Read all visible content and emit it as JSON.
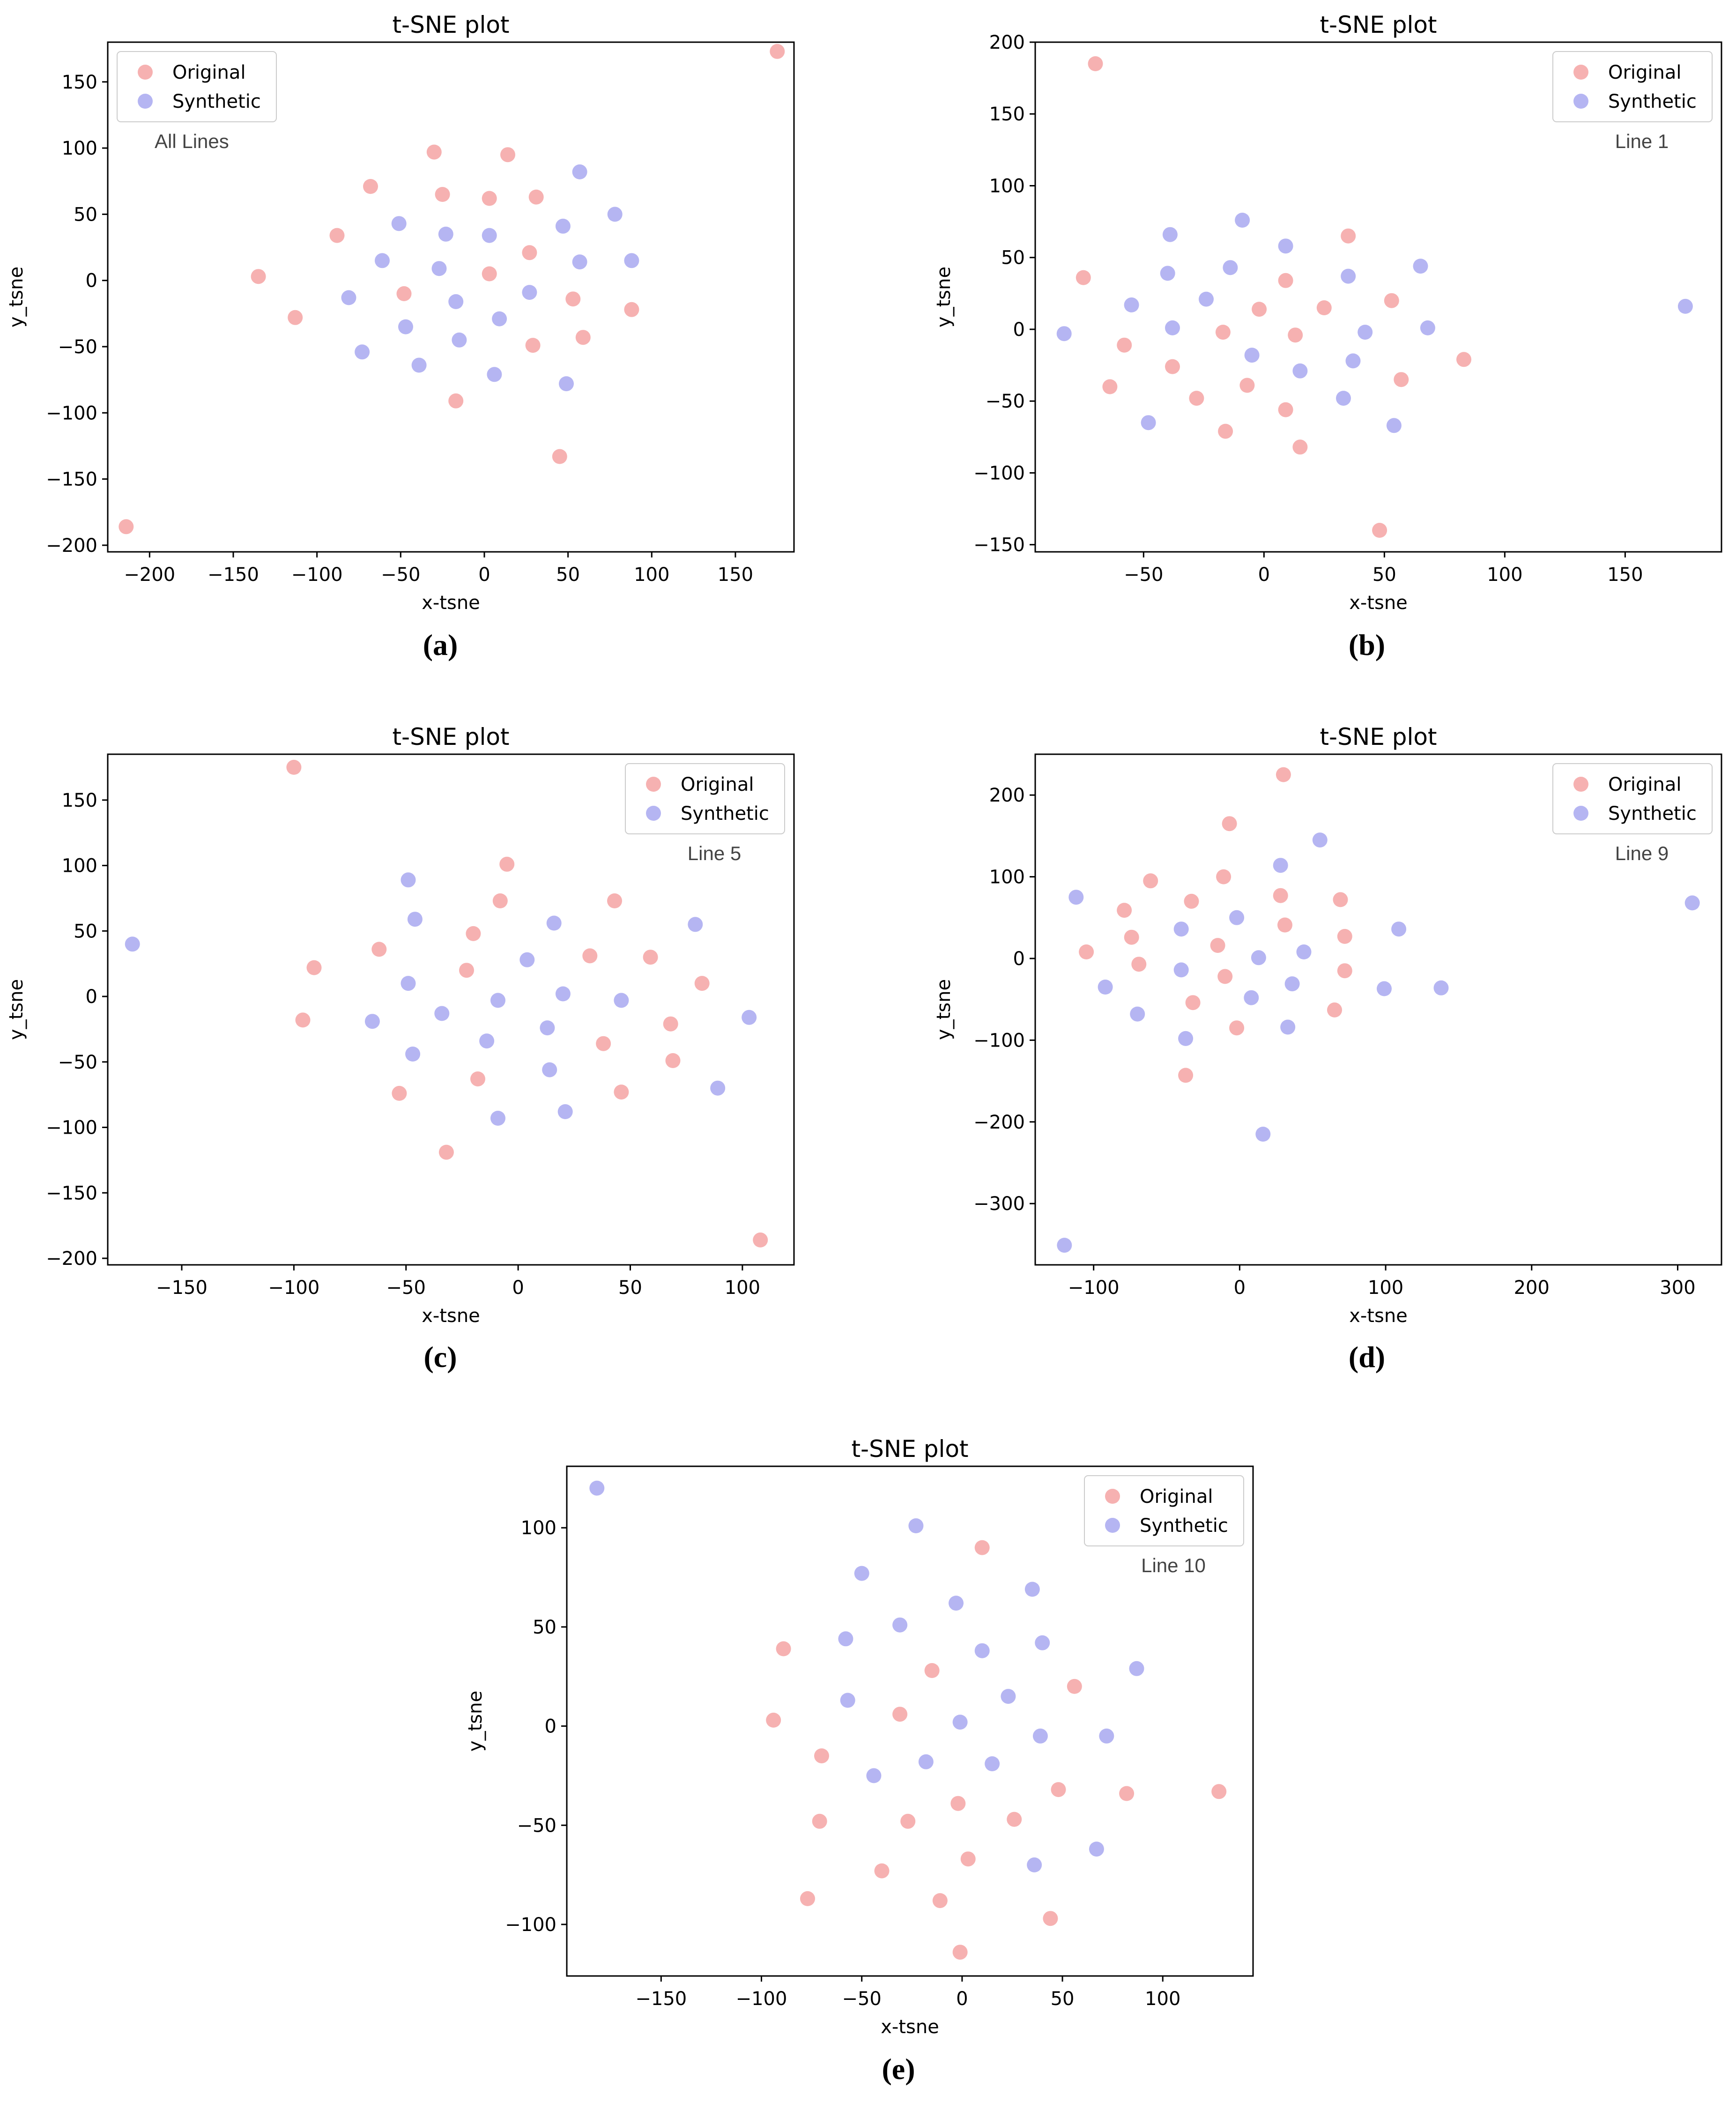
{
  "figure": {
    "colors": {
      "original": "#f4a3a3",
      "synthetic": "#a8a8f0"
    },
    "captions": [
      "(a)",
      "(b)",
      "(c)",
      "(d)",
      "(e)"
    ]
  },
  "chart_data": [
    {
      "type": "scatter",
      "id": "a",
      "title": "t-SNE plot",
      "xlabel": "x-tsne",
      "ylabel": "y_tsne",
      "annotation": "All Lines",
      "legend": {
        "placement": "top-left",
        "entries": [
          "Original",
          "Synthetic"
        ]
      },
      "xlim": [
        -225,
        185
      ],
      "ylim": [
        -205,
        180
      ],
      "xticks": [
        -200,
        -150,
        -100,
        -50,
        0,
        50,
        100,
        150
      ],
      "yticks": [
        -200,
        -150,
        -100,
        -50,
        0,
        50,
        100,
        150
      ],
      "series": [
        {
          "name": "Original",
          "points": [
            [
              175,
              173
            ],
            [
              -30,
              97
            ],
            [
              14,
              95
            ],
            [
              -68,
              71
            ],
            [
              -25,
              65
            ],
            [
              3,
              62
            ],
            [
              31,
              63
            ],
            [
              -88,
              34
            ],
            [
              27,
              21
            ],
            [
              -135,
              3
            ],
            [
              3,
              5
            ],
            [
              -48,
              -10
            ],
            [
              53,
              -14
            ],
            [
              88,
              -22
            ],
            [
              -113,
              -28
            ],
            [
              29,
              -49
            ],
            [
              59,
              -43
            ],
            [
              -17,
              -91
            ],
            [
              45,
              -133
            ],
            [
              -214,
              -186
            ]
          ]
        },
        {
          "name": "Synthetic",
          "points": [
            [
              57,
              82
            ],
            [
              78,
              50
            ],
            [
              -51,
              43
            ],
            [
              -23,
              35
            ],
            [
              3,
              34
            ],
            [
              47,
              41
            ],
            [
              -61,
              15
            ],
            [
              -27,
              9
            ],
            [
              57,
              14
            ],
            [
              88,
              15
            ],
            [
              -81,
              -13
            ],
            [
              -17,
              -16
            ],
            [
              27,
              -9
            ],
            [
              -47,
              -35
            ],
            [
              9,
              -29
            ],
            [
              -15,
              -45
            ],
            [
              -73,
              -54
            ],
            [
              -39,
              -64
            ],
            [
              6,
              -71
            ],
            [
              49,
              -78
            ]
          ]
        }
      ]
    },
    {
      "type": "scatter",
      "id": "b",
      "title": "t-SNE plot",
      "xlabel": "x-tsne",
      "ylabel": "y_tsne",
      "annotation": "Line 1",
      "legend": {
        "placement": "top-right",
        "entries": [
          "Original",
          "Synthetic"
        ]
      },
      "xlim": [
        -95,
        190
      ],
      "ylim": [
        -155,
        200
      ],
      "xticks": [
        -50,
        0,
        50,
        100,
        150
      ],
      "yticks": [
        -150,
        -100,
        -50,
        0,
        50,
        100,
        150,
        200
      ],
      "series": [
        {
          "name": "Original",
          "points": [
            [
              -70,
              185
            ],
            [
              35,
              65
            ],
            [
              -75,
              36
            ],
            [
              9,
              34
            ],
            [
              53,
              20
            ],
            [
              -2,
              14
            ],
            [
              25,
              15
            ],
            [
              -17,
              -2
            ],
            [
              13,
              -4
            ],
            [
              -58,
              -11
            ],
            [
              -38,
              -26
            ],
            [
              57,
              -35
            ],
            [
              83,
              -21
            ],
            [
              -64,
              -40
            ],
            [
              -28,
              -48
            ],
            [
              -7,
              -39
            ],
            [
              9,
              -56
            ],
            [
              -16,
              -71
            ],
            [
              15,
              -82
            ],
            [
              48,
              -140
            ]
          ]
        },
        {
          "name": "Synthetic",
          "points": [
            [
              -9,
              76
            ],
            [
              -39,
              66
            ],
            [
              9,
              58
            ],
            [
              65,
              44
            ],
            [
              -14,
              43
            ],
            [
              -40,
              39
            ],
            [
              35,
              37
            ],
            [
              -55,
              17
            ],
            [
              -24,
              21
            ],
            [
              175,
              16
            ],
            [
              -83,
              -3
            ],
            [
              -38,
              1
            ],
            [
              42,
              -2
            ],
            [
              68,
              1
            ],
            [
              -5,
              -18
            ],
            [
              15,
              -29
            ],
            [
              37,
              -22
            ],
            [
              -48,
              -65
            ],
            [
              33,
              -48
            ],
            [
              54,
              -67
            ]
          ]
        }
      ]
    },
    {
      "type": "scatter",
      "id": "c",
      "title": "t-SNE plot",
      "xlabel": "x-tsne",
      "ylabel": "y_tsne",
      "annotation": "Line 5",
      "legend": {
        "placement": "top-right",
        "entries": [
          "Original",
          "Synthetic"
        ]
      },
      "xlim": [
        -183,
        123
      ],
      "ylim": [
        -205,
        185
      ],
      "xticks": [
        -150,
        -100,
        -50,
        0,
        50,
        100
      ],
      "yticks": [
        -200,
        -150,
        -100,
        -50,
        0,
        50,
        100,
        150
      ],
      "series": [
        {
          "name": "Original",
          "points": [
            [
              -100,
              175
            ],
            [
              -5,
              101
            ],
            [
              43,
              73
            ],
            [
              -8,
              73
            ],
            [
              -20,
              48
            ],
            [
              -62,
              36
            ],
            [
              32,
              31
            ],
            [
              59,
              30
            ],
            [
              -91,
              22
            ],
            [
              -23,
              20
            ],
            [
              82,
              10
            ],
            [
              -96,
              -18
            ],
            [
              68,
              -21
            ],
            [
              38,
              -36
            ],
            [
              69,
              -49
            ],
            [
              -18,
              -63
            ],
            [
              -53,
              -74
            ],
            [
              46,
              -73
            ],
            [
              -32,
              -119
            ],
            [
              108,
              -186
            ]
          ]
        },
        {
          "name": "Synthetic",
          "points": [
            [
              -49,
              89
            ],
            [
              -46,
              59
            ],
            [
              16,
              56
            ],
            [
              79,
              55
            ],
            [
              -172,
              40
            ],
            [
              4,
              28
            ],
            [
              -49,
              10
            ],
            [
              -9,
              -3
            ],
            [
              20,
              2
            ],
            [
              46,
              -3
            ],
            [
              -65,
              -19
            ],
            [
              -34,
              -13
            ],
            [
              13,
              -24
            ],
            [
              103,
              -16
            ],
            [
              -14,
              -34
            ],
            [
              -47,
              -44
            ],
            [
              14,
              -56
            ],
            [
              89,
              -70
            ],
            [
              -9,
              -93
            ],
            [
              21,
              -88
            ]
          ]
        }
      ]
    },
    {
      "type": "scatter",
      "id": "d",
      "title": "t-SNE plot",
      "xlabel": "x-tsne",
      "ylabel": "y_tsne",
      "annotation": "Line 9",
      "legend": {
        "placement": "top-right",
        "entries": [
          "Original",
          "Synthetic"
        ]
      },
      "xlim": [
        -140,
        330
      ],
      "ylim": [
        -375,
        250
      ],
      "xticks": [
        -100,
        0,
        100,
        200,
        300
      ],
      "yticks": [
        -300,
        -200,
        -100,
        0,
        100,
        200
      ],
      "series": [
        {
          "name": "Original",
          "points": [
            [
              30,
              225
            ],
            [
              -7,
              165
            ],
            [
              -11,
              100
            ],
            [
              -61,
              95
            ],
            [
              28,
              77
            ],
            [
              -33,
              70
            ],
            [
              69,
              72
            ],
            [
              -79,
              59
            ],
            [
              31,
              41
            ],
            [
              -74,
              26
            ],
            [
              72,
              27
            ],
            [
              -105,
              8
            ],
            [
              -15,
              16
            ],
            [
              -69,
              -7
            ],
            [
              -10,
              -22
            ],
            [
              72,
              -15
            ],
            [
              -32,
              -54
            ],
            [
              -2,
              -85
            ],
            [
              65,
              -63
            ],
            [
              -37,
              -143
            ]
          ]
        },
        {
          "name": "Synthetic",
          "points": [
            [
              55,
              145
            ],
            [
              -112,
              75
            ],
            [
              28,
              114
            ],
            [
              -2,
              50
            ],
            [
              -40,
              36
            ],
            [
              109,
              36
            ],
            [
              44,
              8
            ],
            [
              13,
              1
            ],
            [
              -40,
              -14
            ],
            [
              -92,
              -35
            ],
            [
              36,
              -31
            ],
            [
              99,
              -37
            ],
            [
              138,
              -36
            ],
            [
              8,
              -48
            ],
            [
              -70,
              -68
            ],
            [
              -37,
              -98
            ],
            [
              33,
              -84
            ],
            [
              16,
              -215
            ],
            [
              -120,
              -351
            ],
            [
              310,
              68
            ]
          ]
        }
      ]
    },
    {
      "type": "scatter",
      "id": "e",
      "title": "t-SNE plot",
      "xlabel": "x-tsne",
      "ylabel": "y_tsne",
      "annotation": "Line 10",
      "legend": {
        "placement": "top-right",
        "entries": [
          "Original",
          "Synthetic"
        ]
      },
      "xlim": [
        -197,
        145
      ],
      "ylim": [
        -126,
        131
      ],
      "xticks": [
        -150,
        -100,
        -50,
        0,
        50,
        100
      ],
      "yticks": [
        -100,
        -50,
        0,
        50,
        100
      ],
      "series": [
        {
          "name": "Original",
          "points": [
            [
              10,
              90
            ],
            [
              -89,
              39
            ],
            [
              -15,
              28
            ],
            [
              56,
              20
            ],
            [
              -94,
              3
            ],
            [
              -31,
              6
            ],
            [
              -70,
              -15
            ],
            [
              48,
              -32
            ],
            [
              82,
              -34
            ],
            [
              128,
              -33
            ],
            [
              -2,
              -39
            ],
            [
              -71,
              -48
            ],
            [
              -27,
              -48
            ],
            [
              26,
              -47
            ],
            [
              3,
              -67
            ],
            [
              -40,
              -73
            ],
            [
              -77,
              -87
            ],
            [
              -11,
              -88
            ],
            [
              44,
              -97
            ],
            [
              -1,
              -114
            ]
          ]
        },
        {
          "name": "Synthetic",
          "points": [
            [
              -182,
              120
            ],
            [
              -23,
              101
            ],
            [
              -50,
              77
            ],
            [
              35,
              69
            ],
            [
              -3,
              62
            ],
            [
              -31,
              51
            ],
            [
              -58,
              44
            ],
            [
              10,
              38
            ],
            [
              40,
              42
            ],
            [
              87,
              29
            ],
            [
              -57,
              13
            ],
            [
              23,
              15
            ],
            [
              -1,
              2
            ],
            [
              39,
              -5
            ],
            [
              72,
              -5
            ],
            [
              -18,
              -18
            ],
            [
              15,
              -19
            ],
            [
              -44,
              -25
            ],
            [
              36,
              -70
            ],
            [
              67,
              -62
            ]
          ]
        }
      ]
    }
  ]
}
